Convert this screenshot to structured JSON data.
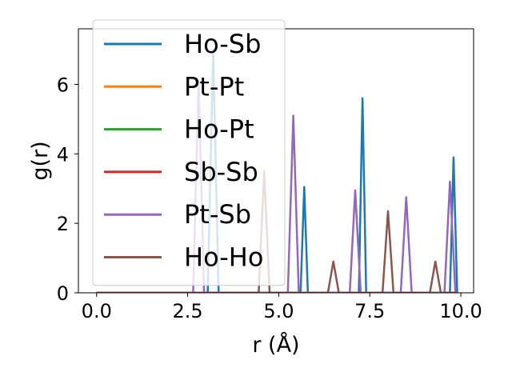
{
  "chart_data": {
    "type": "line",
    "xlabel": "r (Å)",
    "ylabel": "g(r)",
    "xlim": [
      -0.5,
      10.35
    ],
    "ylim": [
      0,
      7.6
    ],
    "xticks": [
      0.0,
      2.5,
      5.0,
      7.5,
      10.0
    ],
    "xtick_labels": [
      "0.0",
      "2.5",
      "5.0",
      "7.5",
      "10.0"
    ],
    "yticks": [
      0,
      2,
      4,
      6
    ],
    "ytick_labels": [
      "0",
      "2",
      "4",
      "6"
    ],
    "grid": false,
    "legend_position": "upper-left",
    "series": [
      {
        "name": "Ho-Sb",
        "color": "#1f77b4",
        "x": [
          0,
          3.05,
          3.2,
          3.35,
          5.6,
          5.7,
          5.8,
          7.2,
          7.3,
          7.4,
          9.7,
          9.8,
          9.9
        ],
        "y": [
          0,
          0,
          7.0,
          0,
          0,
          3.05,
          0,
          0,
          5.6,
          0,
          0,
          3.9,
          0
        ]
      },
      {
        "name": "Pt-Pt",
        "color": "#ff7f0e",
        "x": [
          0,
          9.9
        ],
        "y": [
          0,
          0
        ]
      },
      {
        "name": "Ho-Pt",
        "color": "#2ca02c",
        "x": [
          0,
          9.9
        ],
        "y": [
          0,
          0
        ]
      },
      {
        "name": "Sb-Sb",
        "color": "#d62728",
        "x": [
          0,
          9.9
        ],
        "y": [
          0,
          0
        ]
      },
      {
        "name": "Pt-Sb",
        "color": "#9467bd",
        "x": [
          0,
          2.65,
          2.8,
          2.95,
          5.25,
          5.4,
          5.55,
          6.95,
          7.1,
          7.25,
          8.35,
          8.5,
          8.65,
          9.55,
          9.7,
          9.85,
          9.9
        ],
        "y": [
          0,
          0,
          6.1,
          0,
          0,
          5.1,
          0,
          0,
          2.95,
          0,
          0,
          2.75,
          0,
          0,
          3.2,
          0,
          0
        ]
      },
      {
        "name": "Ho-Ho",
        "color": "#8c564b",
        "x": [
          0,
          4.45,
          4.6,
          4.75,
          6.35,
          6.5,
          6.65,
          7.85,
          8.0,
          8.15,
          9.15,
          9.3,
          9.45,
          9.9
        ],
        "y": [
          0,
          0,
          3.5,
          0,
          0,
          0.9,
          0,
          0,
          2.35,
          0,
          0,
          0.9,
          0,
          0
        ]
      }
    ]
  }
}
